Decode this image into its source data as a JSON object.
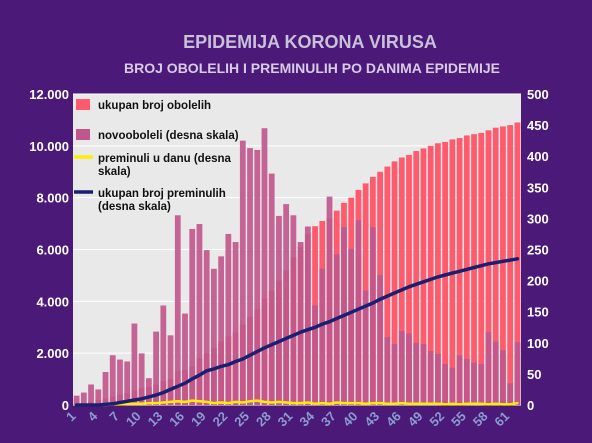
{
  "colors": {
    "background": "#4b1a78",
    "plot_bg": "#e9e9e9",
    "grid": "#ffffff",
    "total_cases": "#ff5b6e",
    "new_cases": "#c0578c",
    "daily_deaths": "#ffee00",
    "total_deaths": "#1a2070",
    "title": "#c9c0d9",
    "subtitle": "#d7cbe6",
    "ticks": "#ffffff",
    "xticks": "#8c9bd0"
  },
  "chart_data": {
    "type": "bar",
    "title": "EPIDEMIJA KORONA VIRUSA",
    "subtitle": "BROJ OBOLELIH I PREMINULIH PO DANIMA EPIDEMIJE",
    "days": [
      1,
      2,
      3,
      4,
      5,
      6,
      7,
      8,
      9,
      10,
      11,
      12,
      13,
      14,
      15,
      16,
      17,
      18,
      19,
      20,
      21,
      22,
      23,
      24,
      25,
      26,
      27,
      28,
      29,
      30,
      31,
      32,
      33,
      34,
      35,
      36,
      37,
      38,
      39,
      40,
      41,
      42,
      43,
      44,
      45,
      46,
      47,
      48,
      49,
      50,
      51,
      52,
      53,
      54,
      55,
      56,
      57,
      58,
      59,
      60,
      61,
      62
    ],
    "x_tick_labels": [
      "1",
      "4",
      "7",
      "10",
      "13",
      "16",
      "19",
      "22",
      "25",
      "28",
      "31",
      "34",
      "37",
      "40",
      "43",
      "46",
      "49",
      "52",
      "55",
      "58",
      "61"
    ],
    "x_tick_days": [
      1,
      4,
      7,
      10,
      13,
      16,
      19,
      22,
      25,
      28,
      31,
      34,
      37,
      40,
      43,
      46,
      49,
      52,
      55,
      58,
      61
    ],
    "y_left": {
      "min": 0,
      "max": 12000,
      "tick_labels": [
        "0",
        "2.000",
        "4.000",
        "6.000",
        "8.000",
        "10.000",
        "12.000"
      ],
      "tick_values": [
        0,
        2000,
        4000,
        6000,
        8000,
        10000,
        12000
      ]
    },
    "y_right": {
      "min": 0,
      "max": 500,
      "tick_labels": [
        "0",
        "50",
        "100",
        "150",
        "200",
        "250",
        "300",
        "350",
        "400",
        "450",
        "500"
      ],
      "tick_values": [
        0,
        50,
        100,
        150,
        200,
        250,
        300,
        350,
        400,
        450,
        500
      ]
    },
    "grid": true,
    "legend_position": "top-left",
    "series": [
      {
        "name": "ukupan broj obolelih",
        "type": "bar",
        "axis": "left",
        "values": [
          40,
          70,
          120,
          190,
          250,
          320,
          400,
          460,
          550,
          640,
          690,
          780,
          920,
          1000,
          1300,
          1350,
          1500,
          1800,
          2000,
          2200,
          2450,
          2650,
          2800,
          3100,
          3400,
          3700,
          4100,
          4400,
          4800,
          5200,
          5700,
          6100,
          6600,
          6900,
          7100,
          7200,
          7500,
          7800,
          8000,
          8300,
          8550,
          8800,
          9000,
          9200,
          9400,
          9550,
          9650,
          9800,
          9900,
          10000,
          10100,
          10150,
          10250,
          10300,
          10400,
          10450,
          10500,
          10600,
          10700,
          10750,
          10800,
          10900
        ]
      },
      {
        "name": "novooboleli (desna skala)",
        "type": "bar",
        "axis": "right",
        "values": [
          15,
          20,
          33,
          25,
          53,
          80,
          73,
          70,
          131,
          83,
          43,
          118,
          160,
          112,
          305,
          147,
          283,
          291,
          249,
          219,
          239,
          275,
          262,
          425,
          413,
          410,
          445,
          372,
          304,
          323,
          305,
          262,
          287,
          160,
          219,
          335,
          242,
          286,
          251,
          297,
          184,
          286,
          209,
          109,
          98,
          119,
          115,
          100,
          98,
          87,
          82,
          66,
          60,
          80,
          74,
          68,
          66,
          117,
          102,
          88,
          35,
          101
        ]
      },
      {
        "name": "preminuli u danu (desna skala)",
        "type": "line",
        "axis": "right",
        "values": [
          0,
          0,
          0,
          0,
          0,
          1,
          1,
          2,
          2,
          2,
          3,
          3,
          4,
          5,
          6,
          5,
          7,
          6,
          5,
          3,
          4,
          3,
          5,
          4,
          6,
          7,
          5,
          4,
          5,
          4,
          3,
          3,
          4,
          2,
          3,
          2,
          4,
          3,
          3,
          3,
          2,
          3,
          3,
          2,
          2,
          3,
          2,
          2,
          2,
          2,
          2,
          1,
          2,
          1,
          2,
          2,
          2,
          1,
          2,
          1,
          1,
          3
        ]
      },
      {
        "name": "ukupan broj preminulih (desna skala)",
        "type": "line",
        "axis": "right",
        "values": [
          0,
          0,
          0,
          0,
          1,
          2,
          4,
          6,
          8,
          10,
          13,
          16,
          20,
          25,
          30,
          35,
          42,
          48,
          55,
          58,
          62,
          65,
          70,
          74,
          80,
          86,
          92,
          97,
          102,
          107,
          112,
          117,
          121,
          125,
          130,
          134,
          139,
          144,
          149,
          154,
          159,
          164,
          170,
          175,
          180,
          185,
          190,
          194,
          198,
          202,
          206,
          209,
          212,
          215,
          218,
          221,
          224,
          227,
          229,
          231,
          233,
          235
        ]
      }
    ]
  }
}
